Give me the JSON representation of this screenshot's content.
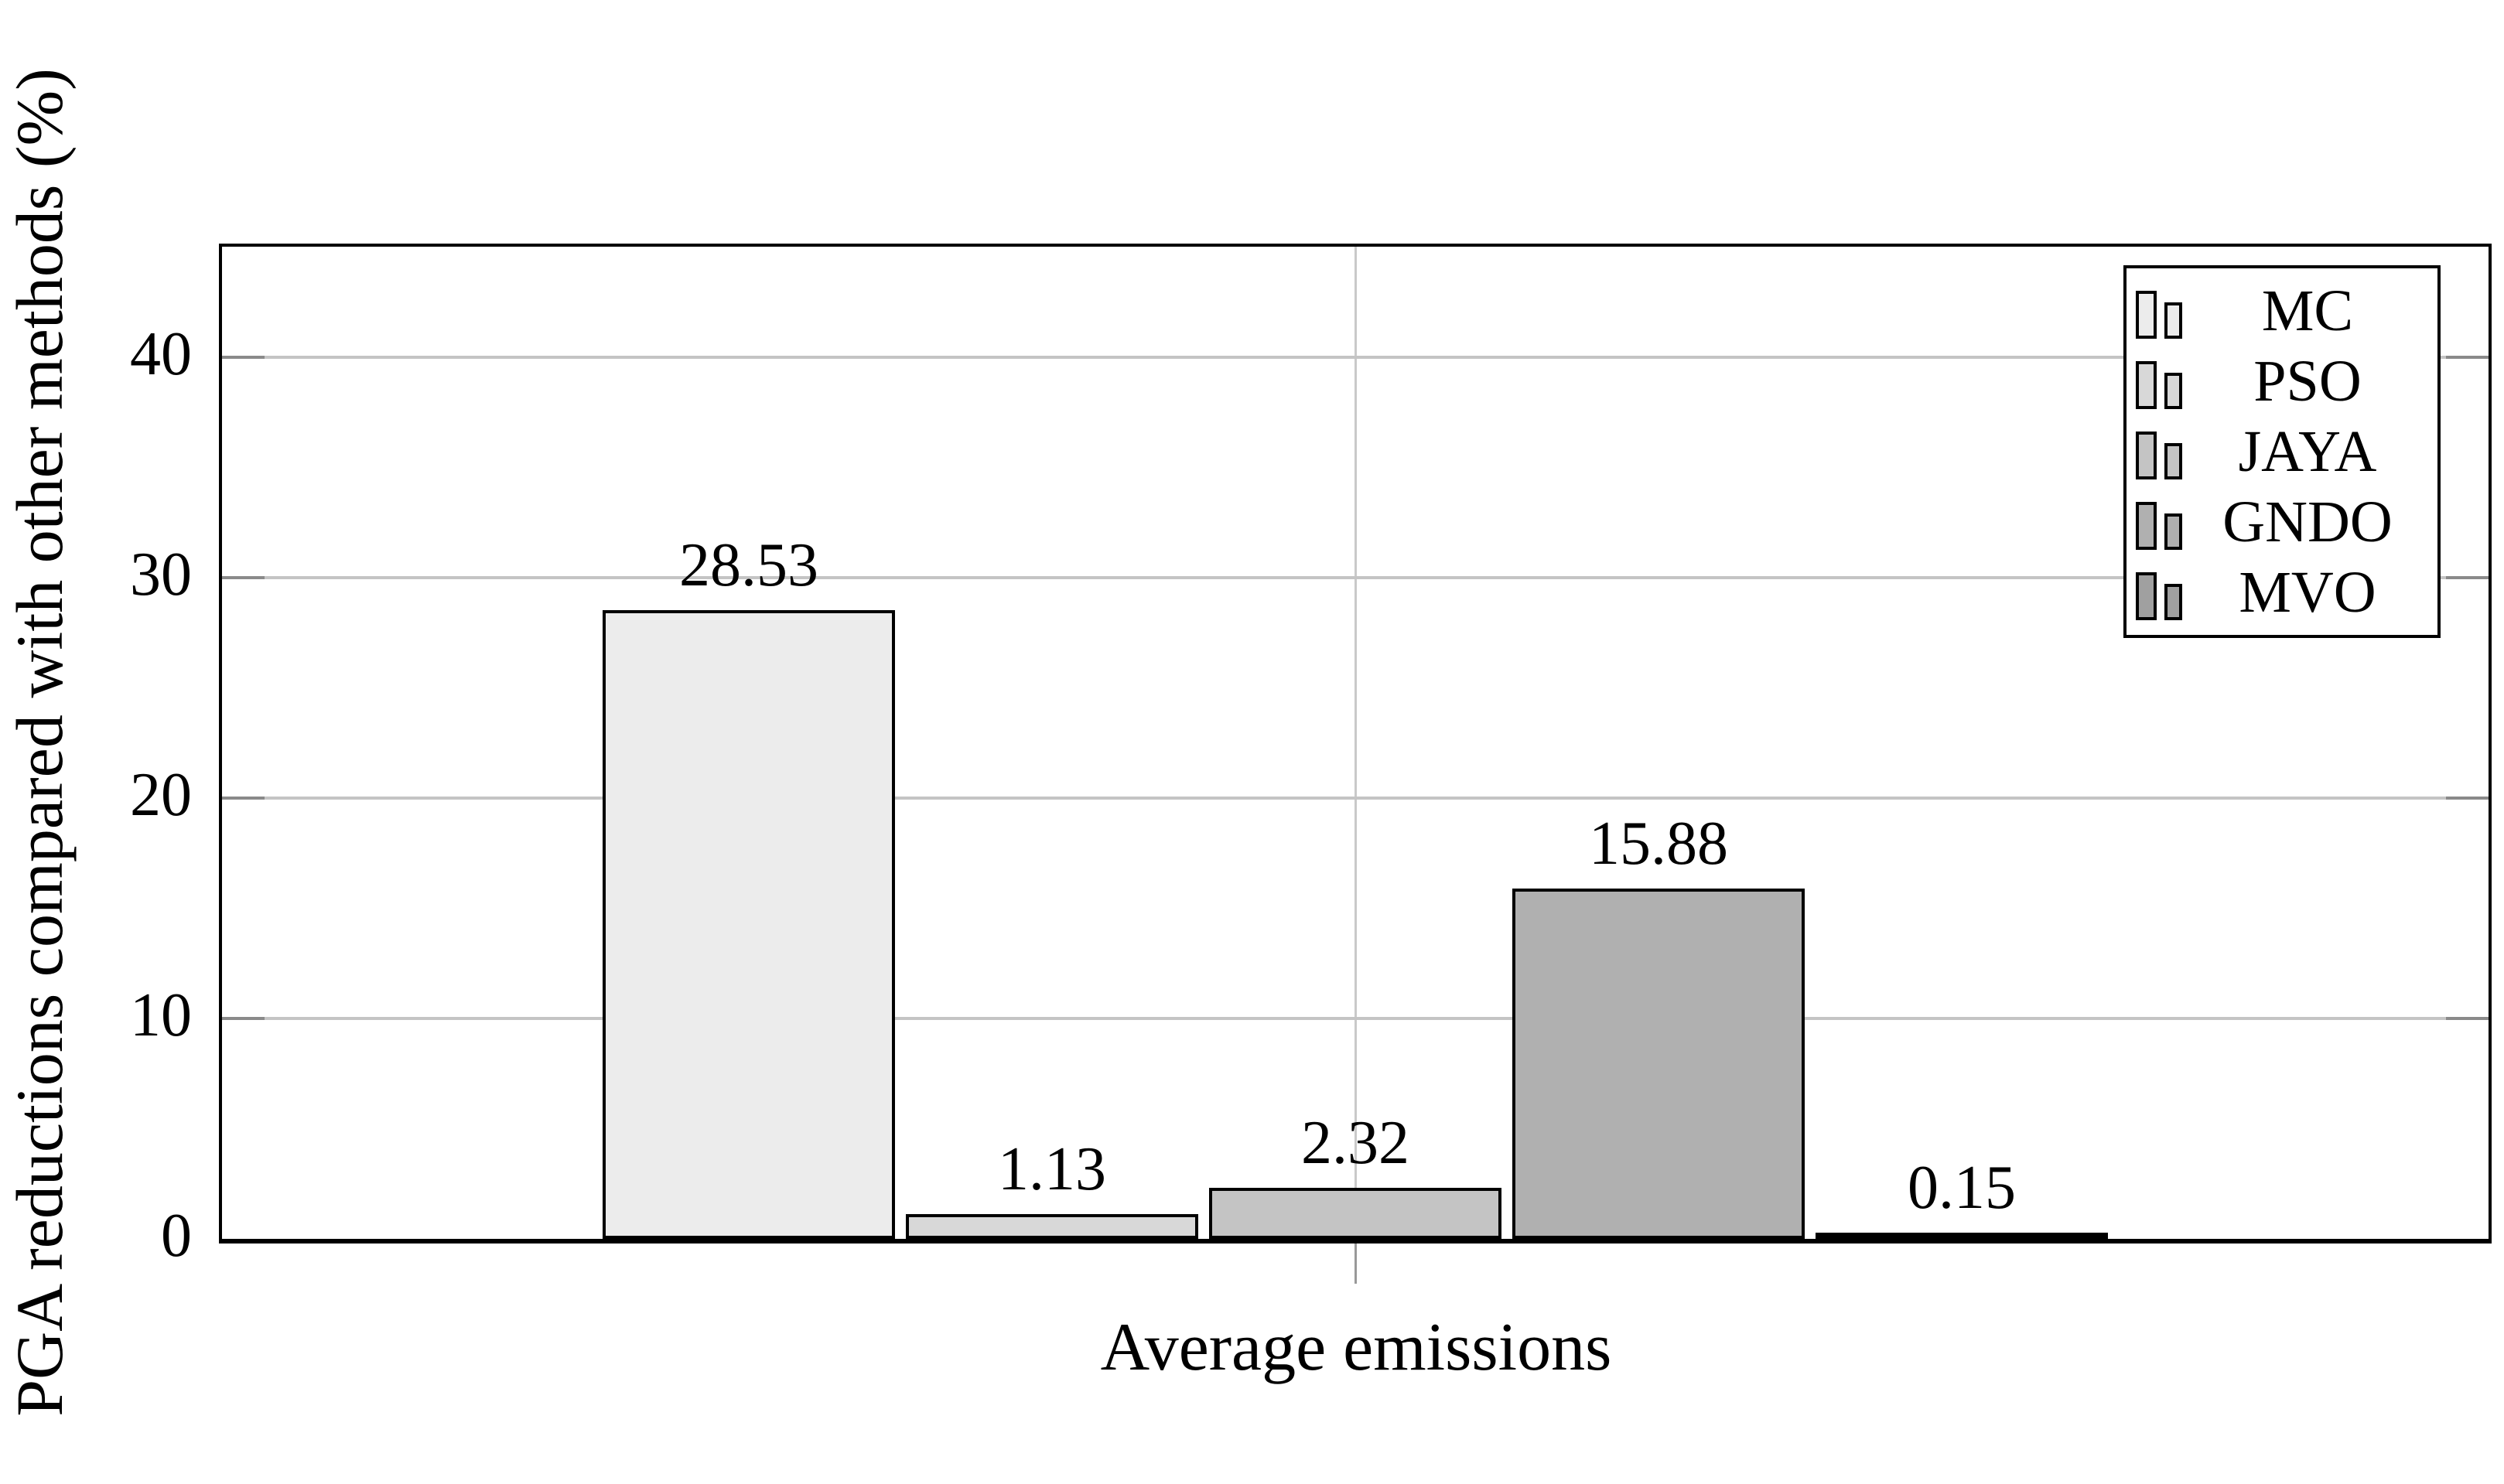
{
  "chart_data": {
    "type": "bar",
    "title": "",
    "xlabel": "Average emissions",
    "ylabel": "PGA reductions compared with other methods (%)",
    "categories": [
      "Average emissions"
    ],
    "series": [
      {
        "name": "MC",
        "values": [
          28.53
        ],
        "label": "28.53",
        "color": "#ececec"
      },
      {
        "name": "PSO",
        "values": [
          1.13
        ],
        "label": "1.13",
        "color": "#d8d8d8"
      },
      {
        "name": "JAYA",
        "values": [
          2.32
        ],
        "label": "2.32",
        "color": "#c4c4c4"
      },
      {
        "name": "GNDO",
        "values": [
          15.88
        ],
        "label": "15.88",
        "color": "#b0b0b0"
      },
      {
        "name": "MVO",
        "values": [
          0.15
        ],
        "label": "0.15",
        "color": "#a0a0a0"
      }
    ],
    "yticks": [
      {
        "value": 0,
        "label": "0"
      },
      {
        "value": 10,
        "label": "10"
      },
      {
        "value": 20,
        "label": "20"
      },
      {
        "value": 30,
        "label": "30"
      },
      {
        "value": 40,
        "label": "40"
      }
    ],
    "ylim": [
      0,
      45
    ],
    "grid": true,
    "legend_position": "top-right",
    "colors": {
      "bar_border": "#000000",
      "grid": "#c4c4c4",
      "tick": "#8a8a8a",
      "axis": "#000000",
      "background": "#ffffff"
    }
  }
}
